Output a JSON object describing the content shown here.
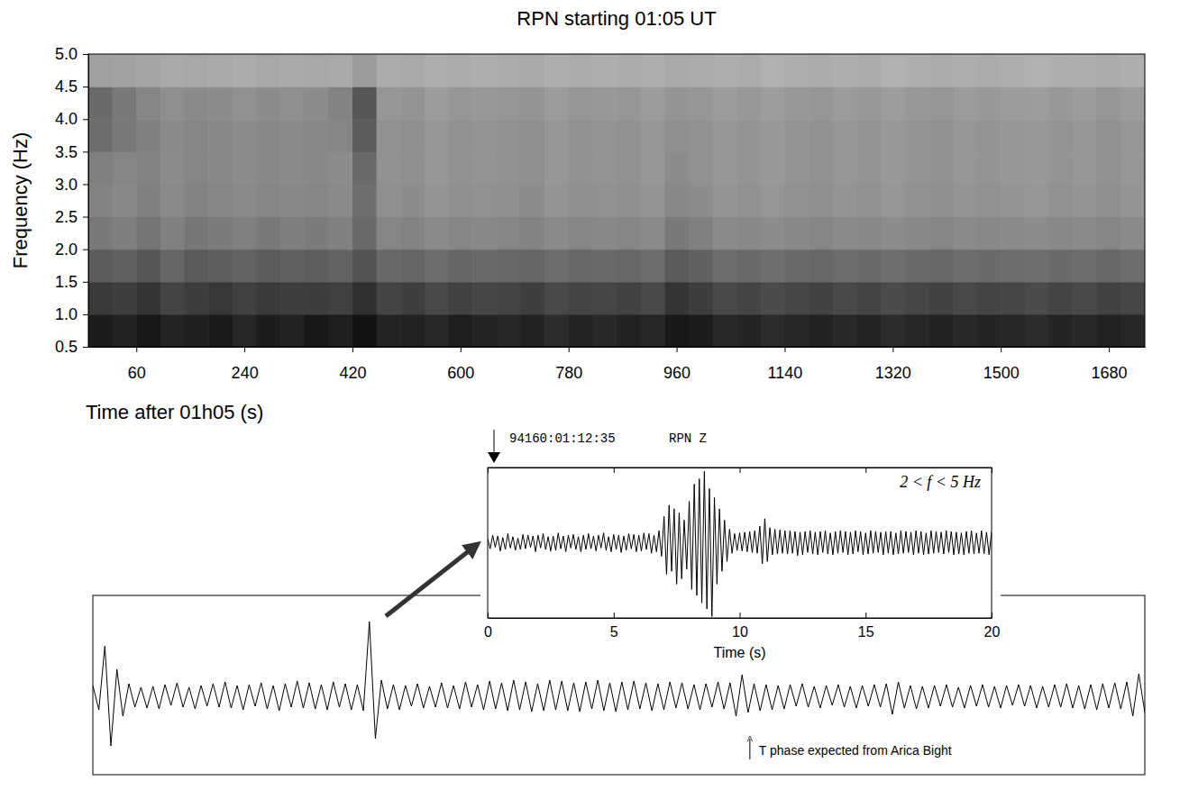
{
  "chart_data": [
    {
      "type": "heatmap",
      "title": "RPN starting 01:05 UT",
      "x_label": "Time after 01h05 (s)",
      "y_label": "Frequency (Hz)",
      "xlim": [
        -20,
        1740
      ],
      "ylim": [
        0.5,
        5.0
      ],
      "xticks": [
        60,
        240,
        420,
        600,
        780,
        960,
        1140,
        1320,
        1500,
        1680
      ],
      "yticks": [
        0.5,
        {
          "value": 1,
          "label": "1.0"
        },
        1.5,
        {
          "value": 2,
          "label": "2.0"
        },
        2.5,
        {
          "value": 3,
          "label": "3.0"
        },
        3.5,
        {
          "value": 4,
          "label": "4.0"
        },
        4.5,
        {
          "value": 5,
          "label": "5.0"
        }
      ],
      "x_edges": [
        -20,
        20,
        60,
        100,
        140,
        180,
        220,
        260,
        300,
        340,
        380,
        420,
        460,
        500,
        540,
        580,
        620,
        660,
        700,
        740,
        780,
        820,
        860,
        900,
        940,
        980,
        1020,
        1060,
        1100,
        1140,
        1180,
        1220,
        1260,
        1300,
        1340,
        1380,
        1420,
        1460,
        1500,
        1540,
        1580,
        1620,
        1660,
        1700,
        1740
      ],
      "y_edges": [
        0.5,
        1,
        1.5,
        2,
        2.5,
        3,
        3.5,
        4,
        4.5,
        5
      ],
      "zlim": [
        0,
        1
      ],
      "z": [
        [
          0.88,
          0.86,
          0.9,
          0.85,
          0.87,
          0.89,
          0.84,
          0.88,
          0.86,
          0.9,
          0.87,
          0.92,
          0.85,
          0.86,
          0.83,
          0.87,
          0.85,
          0.84,
          0.86,
          0.82,
          0.85,
          0.83,
          0.86,
          0.84,
          0.9,
          0.88,
          0.83,
          0.85,
          0.82,
          0.84,
          0.86,
          0.83,
          0.85,
          0.82,
          0.84,
          0.86,
          0.83,
          0.85,
          0.84,
          0.82,
          0.85,
          0.83,
          0.86,
          0.84
        ],
        [
          0.76,
          0.74,
          0.78,
          0.72,
          0.75,
          0.77,
          0.73,
          0.76,
          0.74,
          0.75,
          0.73,
          0.8,
          0.72,
          0.74,
          0.7,
          0.73,
          0.71,
          0.72,
          0.74,
          0.7,
          0.72,
          0.71,
          0.73,
          0.7,
          0.78,
          0.75,
          0.7,
          0.72,
          0.69,
          0.71,
          0.73,
          0.7,
          0.72,
          0.69,
          0.71,
          0.73,
          0.7,
          0.72,
          0.71,
          0.69,
          0.72,
          0.7,
          0.73,
          0.71
        ],
        [
          0.62,
          0.6,
          0.64,
          0.58,
          0.63,
          0.61,
          0.59,
          0.62,
          0.6,
          0.61,
          0.59,
          0.66,
          0.57,
          0.58,
          0.55,
          0.58,
          0.56,
          0.57,
          0.58,
          0.55,
          0.57,
          0.56,
          0.57,
          0.55,
          0.63,
          0.6,
          0.55,
          0.56,
          0.54,
          0.56,
          0.57,
          0.55,
          0.56,
          0.54,
          0.56,
          0.57,
          0.55,
          0.56,
          0.55,
          0.54,
          0.56,
          0.55,
          0.57,
          0.55
        ],
        [
          0.5,
          0.48,
          0.52,
          0.47,
          0.51,
          0.49,
          0.47,
          0.5,
          0.48,
          0.49,
          0.47,
          0.56,
          0.45,
          0.46,
          0.43,
          0.45,
          0.44,
          0.45,
          0.46,
          0.43,
          0.45,
          0.44,
          0.45,
          0.43,
          0.5,
          0.47,
          0.43,
          0.44,
          0.42,
          0.44,
          0.45,
          0.43,
          0.44,
          0.42,
          0.44,
          0.45,
          0.43,
          0.44,
          0.43,
          0.42,
          0.44,
          0.43,
          0.45,
          0.43
        ],
        [
          0.46,
          0.44,
          0.47,
          0.43,
          0.46,
          0.45,
          0.43,
          0.45,
          0.44,
          0.45,
          0.43,
          0.54,
          0.41,
          0.42,
          0.39,
          0.41,
          0.4,
          0.41,
          0.42,
          0.39,
          0.41,
          0.4,
          0.41,
          0.39,
          0.44,
          0.42,
          0.39,
          0.4,
          0.38,
          0.4,
          0.41,
          0.39,
          0.4,
          0.38,
          0.4,
          0.41,
          0.39,
          0.4,
          0.39,
          0.38,
          0.4,
          0.39,
          0.41,
          0.39
        ],
        [
          0.47,
          0.45,
          0.46,
          0.42,
          0.45,
          0.44,
          0.42,
          0.44,
          0.43,
          0.44,
          0.42,
          0.56,
          0.4,
          0.41,
          0.38,
          0.4,
          0.39,
          0.4,
          0.41,
          0.38,
          0.4,
          0.39,
          0.4,
          0.38,
          0.42,
          0.4,
          0.38,
          0.39,
          0.37,
          0.39,
          0.4,
          0.38,
          0.39,
          0.37,
          0.39,
          0.4,
          0.38,
          0.39,
          0.38,
          0.37,
          0.39,
          0.38,
          0.4,
          0.38
        ],
        [
          0.55,
          0.5,
          0.47,
          0.43,
          0.45,
          0.44,
          0.42,
          0.44,
          0.43,
          0.44,
          0.45,
          0.62,
          0.4,
          0.41,
          0.38,
          0.4,
          0.39,
          0.4,
          0.41,
          0.38,
          0.4,
          0.39,
          0.4,
          0.38,
          0.41,
          0.4,
          0.38,
          0.39,
          0.37,
          0.39,
          0.4,
          0.38,
          0.39,
          0.37,
          0.39,
          0.4,
          0.38,
          0.39,
          0.38,
          0.37,
          0.39,
          0.38,
          0.4,
          0.38
        ],
        [
          0.56,
          0.5,
          0.45,
          0.41,
          0.43,
          0.42,
          0.4,
          0.42,
          0.41,
          0.42,
          0.46,
          0.64,
          0.38,
          0.39,
          0.36,
          0.38,
          0.37,
          0.38,
          0.39,
          0.36,
          0.38,
          0.37,
          0.38,
          0.36,
          0.39,
          0.38,
          0.36,
          0.37,
          0.35,
          0.37,
          0.38,
          0.36,
          0.37,
          0.35,
          0.37,
          0.38,
          0.36,
          0.37,
          0.36,
          0.35,
          0.37,
          0.36,
          0.38,
          0.36
        ],
        [
          0.34,
          0.33,
          0.32,
          0.3,
          0.31,
          0.3,
          0.29,
          0.31,
          0.3,
          0.31,
          0.3,
          0.36,
          0.29,
          0.3,
          0.28,
          0.29,
          0.28,
          0.29,
          0.3,
          0.28,
          0.29,
          0.28,
          0.29,
          0.28,
          0.3,
          0.29,
          0.28,
          0.29,
          0.27,
          0.28,
          0.29,
          0.28,
          0.29,
          0.27,
          0.28,
          0.29,
          0.28,
          0.29,
          0.28,
          0.27,
          0.28,
          0.28,
          0.29,
          0.28
        ]
      ]
    },
    {
      "type": "line",
      "title": "94160:01:12:35",
      "subtitle": "RPN Z",
      "annotation": "2 < f < 5 Hz",
      "x_label": "Time (s)",
      "xlim": [
        0,
        20
      ],
      "ylim": [
        -1,
        1
      ],
      "xticks": [
        0,
        5,
        10,
        15,
        20
      ],
      "yticks": [],
      "tick_labels": "x",
      "color": "#000000",
      "x": [
        0,
        0.1,
        0.2,
        0.3,
        0.4,
        0.5,
        0.6,
        0.7,
        0.8,
        0.9,
        1,
        1.1,
        1.2,
        1.3,
        1.4,
        1.5,
        1.6,
        1.7,
        1.8,
        1.9,
        2,
        2.1,
        2.2,
        2.3,
        2.4,
        2.5,
        2.6,
        2.7,
        2.8,
        2.9,
        3,
        3.1,
        3.2,
        3.3,
        3.4,
        3.5,
        3.6,
        3.7,
        3.8,
        3.9,
        4,
        4.1,
        4.2,
        4.3,
        4.4,
        4.5,
        4.6,
        4.7,
        4.8,
        4.9,
        5,
        5.1,
        5.2,
        5.3,
        5.4,
        5.5,
        5.6,
        5.7,
        5.8,
        5.9,
        6,
        6.1,
        6.2,
        6.3,
        6.4,
        6.5,
        6.6,
        6.7,
        6.8,
        6.9,
        7,
        7.1,
        7.2,
        7.3,
        7.4,
        7.5,
        7.6,
        7.7,
        7.8,
        7.9,
        8,
        8.1,
        8.2,
        8.3,
        8.4,
        8.5,
        8.6,
        8.7,
        8.8,
        8.9,
        9,
        9.1,
        9.2,
        9.3,
        9.4,
        9.5,
        9.6,
        9.7,
        9.8,
        9.9,
        10,
        10.1,
        10.2,
        10.3,
        10.4,
        10.5,
        10.6,
        10.7,
        10.8,
        10.9,
        11,
        11.1,
        11.2,
        11.3,
        11.4,
        11.5,
        11.6,
        11.7,
        11.8,
        11.9,
        12,
        12.1,
        12.2,
        12.3,
        12.4,
        12.5,
        12.6,
        12.7,
        12.8,
        12.9,
        13,
        13.1,
        13.2,
        13.3,
        13.4,
        13.5,
        13.6,
        13.7,
        13.8,
        13.9,
        14,
        14.1,
        14.2,
        14.3,
        14.4,
        14.5,
        14.6,
        14.7,
        14.8,
        14.9,
        15,
        15.1,
        15.2,
        15.3,
        15.4,
        15.5,
        15.6,
        15.7,
        15.8,
        15.9,
        16,
        16.1,
        16.2,
        16.3,
        16.4,
        16.5,
        16.6,
        16.7,
        16.8,
        16.9,
        17,
        17.1,
        17.2,
        17.3,
        17.4,
        17.5,
        17.6,
        17.7,
        17.8,
        17.9,
        18,
        18.1,
        18.2,
        18.3,
        18.4,
        18.5,
        18.6,
        18.7,
        18.8,
        18.9,
        19,
        19.1,
        19.2,
        19.3,
        19.4,
        19.5,
        19.6,
        19.7,
        19.8,
        19.9,
        20
      ],
      "values": [
        0.05,
        -0.08,
        0.1,
        -0.06,
        0.09,
        -0.11,
        0.07,
        -0.09,
        0.12,
        -0.07,
        0.08,
        -0.1,
        0.06,
        -0.09,
        0.11,
        -0.08,
        0.1,
        -0.06,
        0.09,
        -0.12,
        0.1,
        -0.07,
        0.12,
        -0.09,
        0.08,
        -0.11,
        0.09,
        -0.1,
        0.13,
        -0.08,
        0.09,
        -0.12,
        0.1,
        -0.07,
        0.11,
        -0.09,
        0.08,
        -0.12,
        0.1,
        -0.09,
        0.12,
        -0.08,
        0.09,
        -0.11,
        0.1,
        -0.07,
        0.13,
        -0.1,
        0.08,
        -0.12,
        0.11,
        -0.09,
        0.1,
        -0.13,
        0.09,
        -0.1,
        0.12,
        -0.08,
        0.11,
        -0.12,
        0.1,
        -0.11,
        0.13,
        -0.09,
        0.12,
        -0.14,
        0.1,
        -0.12,
        0.16,
        -0.18,
        0.35,
        -0.42,
        0.5,
        -0.38,
        0.45,
        -0.55,
        0.4,
        -0.48,
        0.3,
        -0.35,
        0.55,
        -0.62,
        0.78,
        -0.7,
        0.85,
        -0.8,
        0.95,
        -0.88,
        0.72,
        -0.98,
        0.6,
        -0.55,
        0.45,
        -0.38,
        0.3,
        -0.25,
        0.18,
        -0.14,
        0.12,
        -0.1,
        0.13,
        -0.11,
        0.14,
        -0.12,
        0.15,
        -0.13,
        0.16,
        -0.14,
        0.22,
        -0.28,
        0.32,
        -0.25,
        0.2,
        -0.16,
        0.18,
        -0.15,
        0.17,
        -0.14,
        0.16,
        -0.15,
        0.16,
        -0.14,
        0.15,
        -0.17,
        0.14,
        -0.16,
        0.15,
        -0.13,
        0.16,
        -0.15,
        0.14,
        -0.16,
        0.15,
        -0.13,
        0.16,
        -0.15,
        0.13,
        -0.16,
        0.15,
        -0.14,
        0.16,
        -0.13,
        0.15,
        -0.16,
        0.14,
        -0.15,
        0.16,
        -0.12,
        0.15,
        -0.16,
        0.13,
        -0.15,
        0.16,
        -0.14,
        0.15,
        -0.13,
        0.14,
        -0.16,
        0.15,
        -0.14,
        0.15,
        -0.16,
        0.13,
        -0.15,
        0.16,
        -0.14,
        0.15,
        -0.13,
        0.14,
        -0.16,
        0.16,
        -0.14,
        0.15,
        -0.16,
        0.13,
        -0.15,
        0.16,
        -0.14,
        0.15,
        -0.13,
        0.14,
        -0.15,
        0.16,
        -0.13,
        0.15,
        -0.16,
        0.14,
        -0.15,
        0.13,
        -0.16,
        0.15,
        -0.14,
        0.16,
        -0.15,
        0.13,
        -0.14,
        0.16,
        -0.15,
        0.14,
        -0.16,
        0.15
      ]
    },
    {
      "type": "line",
      "xlim": [
        0,
        1750
      ],
      "ylim": [
        -0.87,
        1.12
      ],
      "xticks": [],
      "yticks": [],
      "tick_labels": false,
      "color": "#000000",
      "annotations": [
        {
          "text": "T phase expected from Arica Bight",
          "x": 1093
        }
      ],
      "x": [
        0,
        10,
        20,
        30,
        40,
        50,
        60,
        70,
        80,
        90,
        100,
        110,
        120,
        130,
        140,
        150,
        160,
        170,
        180,
        190,
        200,
        210,
        220,
        230,
        240,
        250,
        260,
        270,
        280,
        290,
        300,
        310,
        320,
        330,
        340,
        350,
        360,
        370,
        380,
        390,
        400,
        410,
        420,
        430,
        440,
        450,
        460,
        470,
        480,
        490,
        500,
        510,
        520,
        530,
        540,
        550,
        560,
        570,
        580,
        590,
        600,
        610,
        620,
        630,
        640,
        650,
        660,
        670,
        680,
        690,
        700,
        710,
        720,
        730,
        740,
        750,
        760,
        770,
        780,
        790,
        800,
        810,
        820,
        830,
        840,
        850,
        860,
        870,
        880,
        890,
        900,
        910,
        920,
        930,
        940,
        950,
        960,
        970,
        980,
        990,
        1000,
        1010,
        1020,
        1030,
        1040,
        1050,
        1060,
        1070,
        1080,
        1090,
        1100,
        1110,
        1120,
        1130,
        1140,
        1150,
        1160,
        1170,
        1180,
        1190,
        1200,
        1210,
        1220,
        1230,
        1240,
        1250,
        1260,
        1270,
        1280,
        1290,
        1300,
        1310,
        1320,
        1330,
        1340,
        1350,
        1360,
        1370,
        1380,
        1390,
        1400,
        1410,
        1420,
        1430,
        1440,
        1450,
        1460,
        1470,
        1480,
        1490,
        1500,
        1510,
        1520,
        1530,
        1540,
        1550,
        1560,
        1570,
        1580,
        1590,
        1600,
        1610,
        1620,
        1630,
        1640,
        1650,
        1660,
        1670,
        1680,
        1690,
        1700,
        1710,
        1720,
        1730,
        1740,
        1750
      ],
      "values": [
        0.12,
        -0.15,
        0.56,
        -0.55,
        0.3,
        -0.22,
        0.14,
        -0.12,
        0.1,
        -0.13,
        0.11,
        -0.14,
        0.13,
        -0.1,
        0.15,
        -0.12,
        0.1,
        -0.14,
        0.12,
        -0.11,
        0.14,
        -0.12,
        0.16,
        -0.13,
        0.12,
        -0.15,
        0.13,
        -0.11,
        0.15,
        -0.14,
        0.12,
        -0.16,
        0.14,
        -0.12,
        0.17,
        -0.13,
        0.15,
        -0.14,
        0.13,
        -0.15,
        0.16,
        -0.12,
        0.14,
        -0.15,
        0.13,
        -0.16,
        0.83,
        -0.47,
        0.18,
        -0.14,
        0.13,
        -0.15,
        0.12,
        -0.11,
        0.14,
        -0.13,
        0.11,
        -0.12,
        0.15,
        -0.13,
        0.12,
        -0.14,
        0.16,
        -0.12,
        0.13,
        -0.15,
        0.17,
        -0.14,
        0.15,
        -0.16,
        0.18,
        -0.15,
        0.16,
        -0.17,
        0.14,
        -0.16,
        0.18,
        -0.15,
        0.17,
        -0.16,
        0.15,
        -0.17,
        0.16,
        -0.14,
        0.18,
        -0.16,
        0.15,
        -0.17,
        0.16,
        -0.15,
        0.17,
        -0.14,
        0.15,
        -0.16,
        0.14,
        -0.15,
        0.16,
        -0.13,
        0.15,
        -0.14,
        0.13,
        -0.15,
        0.14,
        -0.12,
        0.16,
        -0.14,
        0.15,
        -0.22,
        0.24,
        -0.18,
        0.14,
        -0.16,
        0.13,
        -0.15,
        0.12,
        -0.14,
        0.13,
        -0.11,
        0.14,
        -0.12,
        0.11,
        -0.13,
        0.12,
        -0.1,
        0.13,
        -0.12,
        0.11,
        -0.13,
        0.12,
        -0.11,
        0.13,
        -0.12,
        0.14,
        -0.2,
        0.16,
        -0.13,
        0.12,
        -0.14,
        0.11,
        -0.13,
        0.12,
        -0.11,
        0.13,
        -0.12,
        0.1,
        -0.13,
        0.12,
        -0.11,
        0.13,
        -0.12,
        0.11,
        -0.13,
        0.12,
        -0.1,
        0.13,
        -0.11,
        0.12,
        -0.13,
        0.11,
        -0.12,
        0.13,
        -0.12,
        0.14,
        -0.13,
        0.12,
        -0.14,
        0.13,
        -0.15,
        0.14,
        -0.13,
        0.15,
        -0.14,
        0.16,
        -0.22,
        0.25,
        -0.18
      ]
    }
  ]
}
